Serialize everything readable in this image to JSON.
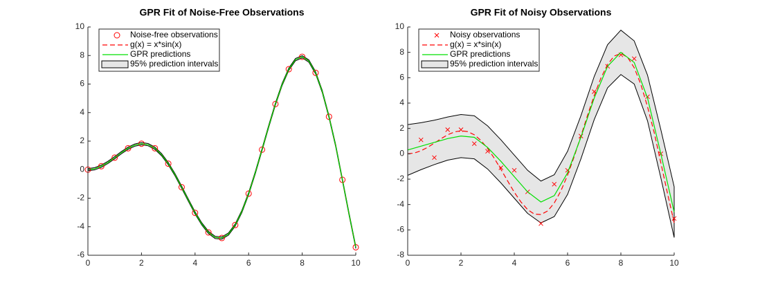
{
  "chart_data": [
    {
      "type": "line",
      "title": "GPR Fit of Noise-Free Observations",
      "xlim": [
        0,
        10
      ],
      "ylim": [
        -6,
        10
      ],
      "xticks": [
        0,
        2,
        4,
        6,
        8,
        10
      ],
      "yticks": [
        -6,
        -4,
        -2,
        0,
        2,
        4,
        6,
        8,
        10
      ],
      "legend": "upper left",
      "series": [
        {
          "name": "Noise-free observations",
          "kind": "markers",
          "marker": "o",
          "color": "#ff0000",
          "x": [
            0,
            0.5,
            1,
            1.5,
            2,
            2.5,
            3,
            3.5,
            4,
            4.5,
            5,
            5.5,
            6,
            6.5,
            7,
            7.5,
            8,
            8.5,
            9,
            9.5,
            10
          ],
          "values": [
            0,
            0.24,
            0.84,
            1.5,
            1.82,
            1.5,
            0.42,
            -1.23,
            -3.03,
            -4.4,
            -4.79,
            -3.88,
            -1.68,
            1.4,
            4.6,
            7.04,
            7.91,
            6.79,
            3.71,
            -0.71,
            -5.44
          ]
        },
        {
          "name": "g(x) = x*sin(x)",
          "kind": "line",
          "dash": true,
          "color": "#ff0000",
          "x": [
            0,
            0.25,
            0.5,
            0.75,
            1,
            1.25,
            1.5,
            1.75,
            2,
            2.25,
            2.5,
            2.75,
            3,
            3.25,
            3.5,
            3.75,
            4,
            4.25,
            4.5,
            4.75,
            5,
            5.25,
            5.5,
            5.75,
            6,
            6.25,
            6.5,
            6.75,
            7,
            7.25,
            7.5,
            7.75,
            8,
            8.25,
            8.5,
            8.75,
            9,
            9.25,
            9.5,
            9.75,
            10
          ],
          "values": [
            0,
            0.06,
            0.24,
            0.51,
            0.84,
            1.19,
            1.5,
            1.72,
            1.82,
            1.75,
            1.5,
            1.05,
            0.42,
            -0.35,
            -1.23,
            -2.14,
            -3.03,
            -3.8,
            -4.4,
            -4.75,
            -4.79,
            -4.51,
            -3.88,
            -2.92,
            -1.68,
            -0.21,
            1.4,
            3.04,
            4.6,
            5.97,
            7.04,
            7.71,
            7.91,
            7.61,
            6.79,
            5.47,
            3.71,
            1.68,
            -0.71,
            -3.12,
            -5.44
          ]
        },
        {
          "name": "GPR predictions",
          "kind": "line",
          "color": "#00e000",
          "x": [
            0,
            0.25,
            0.5,
            0.75,
            1,
            1.25,
            1.5,
            1.75,
            2,
            2.25,
            2.5,
            2.75,
            3,
            3.25,
            3.5,
            3.75,
            4,
            4.25,
            4.5,
            4.75,
            5,
            5.25,
            5.5,
            5.75,
            6,
            6.25,
            6.5,
            6.75,
            7,
            7.25,
            7.5,
            7.75,
            8,
            8.25,
            8.5,
            8.75,
            9,
            9.25,
            9.5,
            9.75,
            10
          ],
          "values": [
            0,
            0.06,
            0.24,
            0.51,
            0.84,
            1.19,
            1.5,
            1.72,
            1.82,
            1.75,
            1.5,
            1.05,
            0.42,
            -0.35,
            -1.23,
            -2.14,
            -3.03,
            -3.8,
            -4.4,
            -4.75,
            -4.79,
            -4.51,
            -3.88,
            -2.92,
            -1.68,
            -0.21,
            1.4,
            3.04,
            4.6,
            5.97,
            7.04,
            7.71,
            7.91,
            7.61,
            6.79,
            5.47,
            3.71,
            1.68,
            -0.71,
            -3.12,
            -5.44
          ]
        },
        {
          "name": "95% prediction intervals",
          "kind": "band",
          "color": "#e6e6e6",
          "x": [
            0,
            0.25,
            0.5,
            0.75,
            1,
            1.25,
            1.5,
            1.75,
            2,
            2.25,
            2.5,
            2.75,
            3,
            3.25,
            3.5,
            3.75,
            4,
            4.25,
            4.5,
            4.75,
            5,
            5.25,
            5.5,
            5.75,
            6,
            6.25,
            6.5,
            6.75,
            7,
            7.25,
            7.5,
            7.75,
            8,
            8.25,
            8.5,
            8.75,
            9,
            9.25,
            9.5,
            9.75,
            10
          ],
          "lower": [
            -0.08,
            -0.02,
            0.16,
            0.43,
            0.76,
            1.11,
            1.42,
            1.64,
            1.74,
            1.67,
            1.42,
            0.97,
            0.34,
            -0.43,
            -1.31,
            -2.22,
            -3.11,
            -3.88,
            -4.48,
            -4.83,
            -4.87,
            -4.59,
            -3.96,
            -3.0,
            -1.76,
            -0.29,
            1.32,
            2.96,
            4.52,
            5.89,
            6.96,
            7.63,
            7.83,
            7.53,
            6.71,
            5.39,
            3.63,
            1.6,
            -0.79,
            -3.2,
            -5.52
          ],
          "upper": [
            0.08,
            0.14,
            0.32,
            0.59,
            0.92,
            1.27,
            1.58,
            1.8,
            1.9,
            1.83,
            1.58,
            1.13,
            0.5,
            -0.27,
            -1.15,
            -2.06,
            -2.95,
            -3.72,
            -4.32,
            -4.67,
            -4.71,
            -4.43,
            -3.8,
            -2.84,
            -1.6,
            -0.13,
            1.48,
            3.12,
            4.68,
            6.05,
            7.12,
            7.79,
            7.99,
            7.69,
            6.87,
            5.55,
            3.79,
            1.76,
            -0.63,
            -3.04,
            -5.36
          ]
        }
      ]
    },
    {
      "type": "line",
      "title": "GPR Fit of Noisy Observations",
      "xlim": [
        0,
        10
      ],
      "ylim": [
        -8,
        10
      ],
      "xticks": [
        0,
        2,
        4,
        6,
        8,
        10
      ],
      "yticks": [
        -8,
        -6,
        -4,
        -2,
        0,
        2,
        4,
        6,
        8,
        10
      ],
      "legend": "upper left",
      "series": [
        {
          "name": "Noisy observations",
          "kind": "markers",
          "marker": "x",
          "color": "#ff0000",
          "x": [
            0.5,
            1,
            1.5,
            2,
            2.5,
            3,
            3.5,
            4,
            4.5,
            5,
            5.5,
            6,
            6.5,
            7,
            7.5,
            8,
            8.5,
            9,
            9.5,
            10
          ],
          "values": [
            1.1,
            -0.3,
            1.9,
            1.9,
            0.8,
            0.2,
            -1.1,
            -1.3,
            -3.0,
            -5.5,
            -2.4,
            -1.3,
            1.4,
            4.9,
            6.9,
            7.8,
            7.5,
            4.5,
            0.0,
            -5.1
          ]
        },
        {
          "name": "g(x) = x*sin(x)",
          "kind": "line",
          "dash": true,
          "color": "#ff0000",
          "x": [
            0,
            0.25,
            0.5,
            0.75,
            1,
            1.25,
            1.5,
            1.75,
            2,
            2.25,
            2.5,
            2.75,
            3,
            3.25,
            3.5,
            3.75,
            4,
            4.25,
            4.5,
            4.75,
            5,
            5.25,
            5.5,
            5.75,
            6,
            6.25,
            6.5,
            6.75,
            7,
            7.25,
            7.5,
            7.75,
            8,
            8.25,
            8.5,
            8.75,
            9,
            9.25,
            9.5,
            9.75,
            10
          ],
          "values": [
            0,
            0.06,
            0.24,
            0.51,
            0.84,
            1.19,
            1.5,
            1.72,
            1.82,
            1.75,
            1.5,
            1.05,
            0.42,
            -0.35,
            -1.23,
            -2.14,
            -3.03,
            -3.8,
            -4.4,
            -4.75,
            -4.79,
            -4.51,
            -3.88,
            -2.92,
            -1.68,
            -0.21,
            1.4,
            3.04,
            4.6,
            5.97,
            7.04,
            7.71,
            7.91,
            7.61,
            6.79,
            5.47,
            3.71,
            1.68,
            -0.71,
            -3.12,
            -5.44
          ]
        },
        {
          "name": "GPR predictions",
          "kind": "line",
          "color": "#00e000",
          "x": [
            0,
            0.5,
            1,
            1.5,
            2,
            2.5,
            3,
            3.5,
            4,
            4.5,
            5,
            5.5,
            6,
            6.5,
            7,
            7.5,
            8,
            8.5,
            9,
            9.5,
            10
          ],
          "values": [
            0.3,
            0.6,
            0.9,
            1.2,
            1.4,
            1.3,
            0.5,
            -0.6,
            -1.8,
            -3.0,
            -3.8,
            -3.3,
            -1.5,
            1.3,
            4.4,
            6.9,
            8.0,
            7.2,
            4.4,
            0.0,
            -4.6
          ]
        },
        {
          "name": "95% prediction intervals",
          "kind": "band",
          "color": "#e6e6e6",
          "x": [
            0,
            0.5,
            1,
            1.5,
            2,
            2.5,
            3,
            3.5,
            4,
            4.5,
            5,
            5.5,
            6,
            6.5,
            7,
            7.5,
            8,
            8.5,
            9,
            9.5,
            10
          ],
          "lower": [
            -1.7,
            -1.25,
            -0.85,
            -0.5,
            -0.3,
            -0.4,
            -1.2,
            -2.3,
            -3.5,
            -4.7,
            -5.45,
            -4.95,
            -3.2,
            -0.4,
            2.7,
            5.2,
            6.25,
            5.5,
            2.6,
            -1.9,
            -6.6
          ],
          "upper": [
            2.3,
            2.45,
            2.65,
            2.9,
            3.1,
            3.0,
            2.2,
            1.1,
            -0.1,
            -1.3,
            -2.15,
            -1.65,
            0.2,
            3.0,
            6.1,
            8.6,
            9.75,
            8.9,
            6.2,
            1.9,
            -2.6
          ]
        }
      ]
    }
  ]
}
